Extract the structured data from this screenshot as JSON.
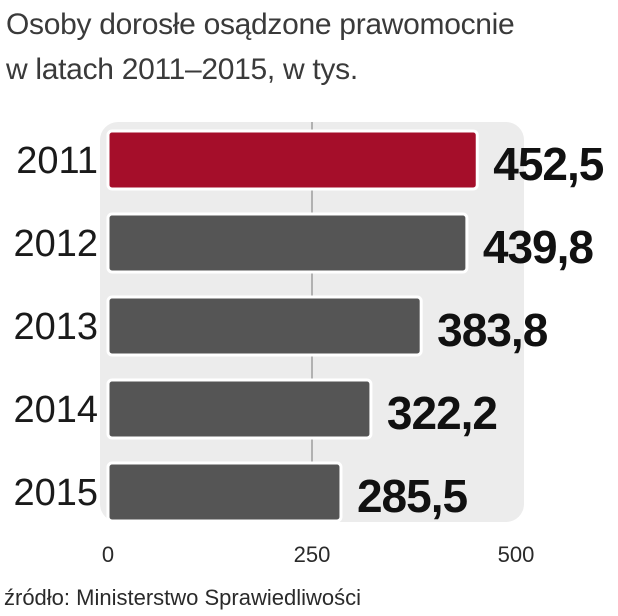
{
  "header": {
    "title_line1": "Osoby dorosłe osądzone prawomocnie",
    "title_line2": "w latach 2011–2015, w tys."
  },
  "source": "źródło: Ministerstwo Sprawiedliwości",
  "colors": {
    "highlight": "#a50e2a",
    "bar": "#555555",
    "plot_background": "#ececec",
    "gridline": "#8a8a8a"
  },
  "chart_data": {
    "type": "bar",
    "orientation": "horizontal",
    "categories": [
      "2011",
      "2012",
      "2013",
      "2014",
      "2015"
    ],
    "values": [
      452.5,
      439.8,
      383.8,
      322.2,
      285.5
    ],
    "value_labels": [
      "452,5",
      "439,8",
      "383,8",
      "322,2",
      "285,5"
    ],
    "highlighted_category": "2011",
    "xlim": [
      0,
      500
    ],
    "x_ticks": [
      0,
      250,
      500
    ],
    "x_tick_labels": [
      "0",
      "250",
      "500"
    ],
    "grid": "vertical gridlines at ticks"
  }
}
